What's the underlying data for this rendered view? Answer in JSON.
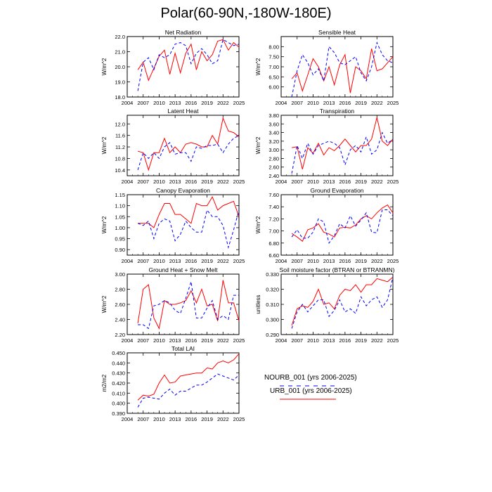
{
  "page": {
    "title": "Polar(60-90N,-180W-180E)"
  },
  "legend": {
    "entries": [
      {
        "label": "NOURB_001 (yrs 2006-2025)",
        "color": "#0000ff",
        "style": "dashed"
      },
      {
        "label": "URB_001 (yrs 2006-2025)",
        "color": "#ff0000",
        "style": "solid"
      }
    ]
  },
  "chart_data": [
    {
      "type": "line",
      "title": "Net Radiation",
      "ylabel": "W/m^2",
      "xlim": [
        2004,
        2025
      ],
      "ylim": [
        18.0,
        22.0
      ],
      "xticks": [
        "2004",
        "2007",
        "2010",
        "2013",
        "2016",
        "2019",
        "2022",
        "2025"
      ],
      "yticks": [
        "18.0",
        "19.0",
        "20.0",
        "21.0",
        "22.0"
      ],
      "x": [
        2006,
        2007,
        2008,
        2009,
        2010,
        2011,
        2012,
        2013,
        2014,
        2015,
        2016,
        2017,
        2018,
        2019,
        2020,
        2021,
        2022,
        2023,
        2024,
        2025
      ],
      "series": [
        {
          "name": "URB_001",
          "color": "#ff0000",
          "dash": false,
          "values": [
            19.8,
            20.3,
            19.1,
            19.9,
            20.7,
            21.1,
            19.5,
            20.9,
            19.6,
            20.9,
            21.5,
            19.8,
            21.0,
            20.4,
            20.8,
            21.7,
            21.8,
            21.1,
            21.6,
            21.3
          ]
        },
        {
          "name": "NOURB_001",
          "color": "#0000ff",
          "dash": true,
          "values": [
            18.4,
            20.3,
            20.6,
            19.8,
            20.8,
            20.6,
            20.8,
            21.5,
            21.6,
            21.4,
            20.2,
            20.9,
            21.2,
            20.8,
            20.2,
            20.4,
            21.8,
            21.6,
            21.4,
            21.5
          ]
        }
      ]
    },
    {
      "type": "line",
      "title": "Sensible Heat",
      "ylabel": "W/m^2",
      "xlim": [
        2004,
        2025
      ],
      "ylim": [
        5.5,
        8.5
      ],
      "xticks": [
        "2004",
        "2007",
        "2010",
        "2013",
        "2016",
        "2019",
        "2022",
        "2025"
      ],
      "yticks": [
        "6.00",
        "6.50",
        "7.00",
        "7.50",
        "8.00"
      ],
      "x": [
        2006,
        2007,
        2008,
        2009,
        2010,
        2011,
        2012,
        2013,
        2014,
        2015,
        2016,
        2017,
        2018,
        2019,
        2020,
        2021,
        2022,
        2023,
        2024,
        2025
      ],
      "series": [
        {
          "name": "URB_001",
          "color": "#ff0000",
          "dash": false,
          "values": [
            6.4,
            6.7,
            5.8,
            6.6,
            7.4,
            7.0,
            6.3,
            7.0,
            6.1,
            7.1,
            7.6,
            5.7,
            7.0,
            6.8,
            6.4,
            7.9,
            6.8,
            6.9,
            7.2,
            7.5
          ]
        },
        {
          "name": "NOURB_001",
          "color": "#0000ff",
          "dash": true,
          "values": [
            5.5,
            6.8,
            7.6,
            7.2,
            6.6,
            6.9,
            6.3,
            8.0,
            7.7,
            7.2,
            7.1,
            7.3,
            7.5,
            6.7,
            6.3,
            7.0,
            8.2,
            7.6,
            7.3,
            7.2
          ]
        }
      ]
    },
    {
      "type": "line",
      "title": "Latent Heat",
      "ylabel": "W/m^2",
      "xlim": [
        2004,
        2025
      ],
      "ylim": [
        10.2,
        12.3
      ],
      "xticks": [
        "2004",
        "2007",
        "2010",
        "2013",
        "2016",
        "2019",
        "2022",
        "2025"
      ],
      "yticks": [
        "10.4",
        "10.8",
        "11.2",
        "11.6",
        "12.0"
      ],
      "x": [
        2006,
        2007,
        2008,
        2009,
        2010,
        2011,
        2012,
        2013,
        2014,
        2015,
        2016,
        2017,
        2018,
        2019,
        2020,
        2021,
        2022,
        2023,
        2024,
        2025
      ],
      "series": [
        {
          "name": "URB_001",
          "color": "#ff0000",
          "dash": false,
          "values": [
            11.05,
            11.0,
            10.4,
            11.0,
            11.0,
            11.5,
            11.0,
            11.2,
            11.0,
            11.3,
            11.35,
            11.3,
            11.2,
            11.2,
            11.6,
            11.3,
            12.2,
            11.75,
            11.7,
            11.55
          ]
        },
        {
          "name": "NOURB_001",
          "color": "#0000ff",
          "dash": true,
          "values": [
            10.4,
            11.0,
            10.8,
            11.0,
            10.8,
            11.2,
            11.35,
            10.95,
            11.0,
            11.0,
            10.7,
            11.2,
            11.15,
            11.25,
            11.25,
            11.3,
            11.0,
            11.3,
            11.5,
            11.6
          ]
        }
      ]
    },
    {
      "type": "line",
      "title": "Transpiration",
      "ylabel": "W/m^2",
      "xlim": [
        2004,
        2025
      ],
      "ylim": [
        2.4,
        3.8
      ],
      "xticks": [
        "2004",
        "2007",
        "2010",
        "2013",
        "2016",
        "2019",
        "2022",
        "2025"
      ],
      "yticks": [
        "2.40",
        "2.60",
        "2.80",
        "3.00",
        "3.20",
        "3.40",
        "3.60",
        "3.80"
      ],
      "x": [
        2006,
        2007,
        2008,
        2009,
        2010,
        2011,
        2012,
        2013,
        2014,
        2015,
        2016,
        2017,
        2018,
        2019,
        2020,
        2021,
        2022,
        2023,
        2024,
        2025
      ],
      "series": [
        {
          "name": "URB_001",
          "color": "#ff0000",
          "dash": false,
          "values": [
            3.05,
            3.07,
            2.55,
            3.05,
            2.92,
            3.15,
            2.88,
            3.05,
            2.98,
            3.1,
            3.25,
            3.1,
            2.95,
            3.1,
            3.1,
            3.25,
            3.75,
            3.2,
            3.1,
            3.25
          ]
        },
        {
          "name": "NOURB_001",
          "color": "#0000ff",
          "dash": true,
          "values": [
            2.45,
            3.1,
            2.8,
            3.15,
            2.9,
            3.1,
            3.15,
            3.2,
            3.15,
            3.05,
            2.65,
            3.0,
            3.1,
            2.95,
            3.3,
            2.9,
            3.0,
            3.4,
            3.15,
            3.25
          ]
        }
      ]
    },
    {
      "type": "line",
      "title": "Canopy Evaporation",
      "ylabel": "W/m^2",
      "xlim": [
        2004,
        2025
      ],
      "ylim": [
        0.875,
        1.15
      ],
      "xticks": [
        "2004",
        "2007",
        "2010",
        "2013",
        "2016",
        "2019",
        "2022",
        "2025"
      ],
      "yticks": [
        "0.90",
        "0.95",
        "1.00",
        "1.05",
        "1.10",
        "1.15"
      ],
      "x": [
        2006,
        2007,
        2008,
        2009,
        2010,
        2011,
        2012,
        2013,
        2014,
        2015,
        2016,
        2017,
        2018,
        2019,
        2020,
        2021,
        2022,
        2023,
        2024,
        2025
      ],
      "series": [
        {
          "name": "URB_001",
          "color": "#ff0000",
          "dash": false,
          "values": [
            1.02,
            1.02,
            1.02,
            1.0,
            1.06,
            1.11,
            1.11,
            1.06,
            1.06,
            1.04,
            1.02,
            1.11,
            1.1,
            1.1,
            1.14,
            1.08,
            1.1,
            1.11,
            1.12,
            1.05
          ]
        },
        {
          "name": "NOURB_001",
          "color": "#0000ff",
          "dash": true,
          "values": [
            1.02,
            1.01,
            1.03,
            0.95,
            1.02,
            1.04,
            1.03,
            0.94,
            0.97,
            1.03,
            1.0,
            0.98,
            0.98,
            1.08,
            1.05,
            1.05,
            1.01,
            0.91,
            0.99,
            1.08
          ]
        }
      ]
    },
    {
      "type": "line",
      "title": "Ground Evaporation",
      "ylabel": "W/m^2",
      "xlim": [
        2004,
        2025
      ],
      "ylim": [
        6.6,
        7.6
      ],
      "xticks": [
        "2004",
        "2007",
        "2010",
        "2013",
        "2016",
        "2019",
        "2022",
        "2025"
      ],
      "yticks": [
        "6.60",
        "6.80",
        "7.00",
        "7.20",
        "7.40",
        "7.60"
      ],
      "x": [
        2006,
        2007,
        2008,
        2009,
        2010,
        2011,
        2012,
        2013,
        2014,
        2015,
        2016,
        2017,
        2018,
        2019,
        2020,
        2021,
        2022,
        2023,
        2024,
        2025
      ],
      "series": [
        {
          "name": "URB_001",
          "color": "#ff0000",
          "dash": false,
          "values": [
            6.96,
            6.9,
            6.83,
            7.02,
            7.05,
            7.12,
            6.98,
            6.95,
            6.9,
            7.05,
            7.06,
            7.05,
            7.1,
            7.2,
            7.25,
            7.2,
            7.3,
            7.38,
            7.43,
            7.3
          ]
        },
        {
          "name": "NOURB_001",
          "color": "#0000ff",
          "dash": true,
          "values": [
            6.9,
            7.02,
            6.88,
            6.88,
            6.98,
            7.2,
            7.15,
            6.8,
            6.92,
            7.12,
            7.05,
            7.25,
            7.08,
            7.18,
            7.3,
            6.98,
            6.97,
            7.35,
            7.35,
            7.25
          ]
        }
      ]
    },
    {
      "type": "line",
      "title": "Ground Heat + Snow Melt",
      "ylabel": "W/m^2",
      "xlim": [
        2004,
        2025
      ],
      "ylim": [
        2.2,
        3.0
      ],
      "xticks": [
        "2004",
        "2007",
        "2010",
        "2013",
        "2016",
        "2019",
        "2022",
        "2025"
      ],
      "yticks": [
        "2.20",
        "2.40",
        "2.60",
        "2.80",
        "3.00"
      ],
      "x": [
        2006,
        2007,
        2008,
        2009,
        2010,
        2011,
        2012,
        2013,
        2014,
        2015,
        2016,
        2017,
        2018,
        2019,
        2020,
        2021,
        2022,
        2023,
        2024,
        2025
      ],
      "series": [
        {
          "name": "URB_001",
          "color": "#ff0000",
          "dash": false,
          "values": [
            2.35,
            2.8,
            2.86,
            2.42,
            2.28,
            2.65,
            2.6,
            2.6,
            2.62,
            2.65,
            2.78,
            2.62,
            2.8,
            2.58,
            2.6,
            2.38,
            2.92,
            2.62,
            2.62,
            2.38
          ]
        },
        {
          "name": "NOURB_001",
          "color": "#0000ff",
          "dash": true,
          "values": [
            2.33,
            2.33,
            2.28,
            2.58,
            2.6,
            2.65,
            2.62,
            2.52,
            2.48,
            2.68,
            2.9,
            2.42,
            2.42,
            2.55,
            2.65,
            2.4,
            2.45,
            2.4,
            2.72,
            2.72
          ]
        }
      ]
    },
    {
      "type": "line",
      "title": "Soil moisture factor (BTRAN or BTRANMN)",
      "ylabel": "unitless",
      "xlim": [
        2004,
        2025
      ],
      "ylim": [
        0.29,
        0.33
      ],
      "xticks": [
        "2004",
        "2007",
        "2010",
        "2013",
        "2016",
        "2019",
        "2022",
        "2025"
      ],
      "yticks": [
        "0.290",
        "0.300",
        "0.310",
        "0.320",
        "0.330"
      ],
      "x": [
        2006,
        2007,
        2008,
        2009,
        2010,
        2011,
        2012,
        2013,
        2014,
        2015,
        2016,
        2017,
        2018,
        2019,
        2020,
        2021,
        2022,
        2023,
        2024,
        2025
      ],
      "series": [
        {
          "name": "URB_001",
          "color": "#ff0000",
          "dash": false,
          "values": [
            0.296,
            0.307,
            0.309,
            0.308,
            0.312,
            0.32,
            0.31,
            0.311,
            0.307,
            0.316,
            0.32,
            0.319,
            0.323,
            0.318,
            0.323,
            0.323,
            0.327,
            0.326,
            0.325,
            0.328
          ]
        },
        {
          "name": "NOURB_001",
          "color": "#0000ff",
          "dash": true,
          "values": [
            0.294,
            0.305,
            0.31,
            0.305,
            0.309,
            0.313,
            0.313,
            0.302,
            0.306,
            0.313,
            0.305,
            0.307,
            0.304,
            0.315,
            0.309,
            0.313,
            0.315,
            0.308,
            0.313,
            0.328
          ]
        }
      ]
    },
    {
      "type": "line",
      "title": "Total LAI",
      "ylabel": "m2/m2",
      "xlim": [
        2004,
        2025
      ],
      "ylim": [
        0.39,
        0.45
      ],
      "xticks": [
        "2004",
        "2007",
        "2010",
        "2013",
        "2016",
        "2019",
        "2022",
        "2025"
      ],
      "yticks": [
        "0.390",
        "0.400",
        "0.410",
        "0.420",
        "0.430",
        "0.440",
        "0.450"
      ],
      "x": [
        2006,
        2007,
        2008,
        2009,
        2010,
        2011,
        2012,
        2013,
        2014,
        2015,
        2016,
        2017,
        2018,
        2019,
        2020,
        2021,
        2022,
        2023,
        2024,
        2025
      ],
      "series": [
        {
          "name": "URB_001",
          "color": "#ff0000",
          "dash": false,
          "values": [
            0.403,
            0.408,
            0.407,
            0.409,
            0.42,
            0.428,
            0.42,
            0.421,
            0.427,
            0.428,
            0.429,
            0.43,
            0.43,
            0.435,
            0.434,
            0.44,
            0.442,
            0.44,
            0.443,
            0.449
          ]
        },
        {
          "name": "NOURB_001",
          "color": "#0000ff",
          "dash": true,
          "values": [
            0.396,
            0.405,
            0.406,
            0.405,
            0.404,
            0.41,
            0.414,
            0.408,
            0.412,
            0.412,
            0.415,
            0.418,
            0.418,
            0.421,
            0.425,
            0.429,
            0.427,
            0.425,
            0.423,
            0.428
          ]
        }
      ]
    }
  ]
}
